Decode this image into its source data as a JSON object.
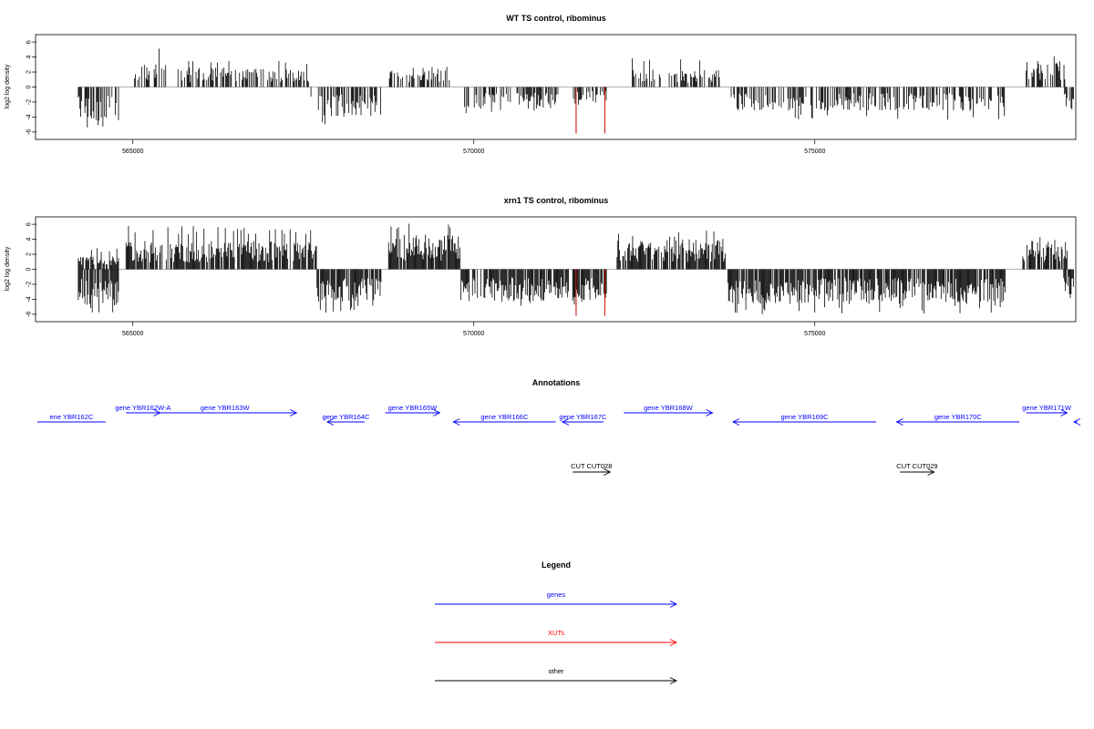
{
  "chart_data": [
    {
      "type": "bar",
      "title": "WT TS control, ribominus",
      "ylabel": "log2 log density",
      "ylim": [
        -6.5,
        6.5
      ],
      "yticks": [
        -6,
        -4,
        -2,
        0,
        2,
        4,
        6
      ],
      "xlim": [
        563600,
        578800
      ],
      "xticks": [
        565000,
        570000,
        575000
      ],
      "xtick_labels": [
        "565000",
        "570000",
        "575000"
      ],
      "colors": {
        "signal": "#000000",
        "highlight": "#cc0000",
        "baseline": "#999999"
      },
      "segments": [
        {
          "start": 564200,
          "end": 564800,
          "sign": -1,
          "max": 6.2,
          "mean": 3.2
        },
        {
          "start": 565000,
          "end": 565500,
          "sign": 1,
          "max": 5.2,
          "mean": 2.2
        },
        {
          "start": 565650,
          "end": 567600,
          "sign": 1,
          "max": 3.6,
          "mean": 1.8
        },
        {
          "start": 567600,
          "end": 568650,
          "sign": -1,
          "max": 5.0,
          "mean": 2.8
        },
        {
          "start": 568750,
          "end": 569650,
          "sign": 1,
          "max": 3.0,
          "mean": 1.8
        },
        {
          "start": 569850,
          "end": 571300,
          "sign": -1,
          "max": 3.6,
          "mean": 2.0
        },
        {
          "start": 571400,
          "end": 571950,
          "sign": -1,
          "max": 2.5,
          "mean": 1.5
        },
        {
          "start": 572300,
          "end": 573600,
          "sign": 1,
          "max": 3.9,
          "mean": 1.6
        },
        {
          "start": 573750,
          "end": 577800,
          "sign": -1,
          "max": 4.6,
          "mean": 2.2
        },
        {
          "start": 578100,
          "end": 578700,
          "sign": 1,
          "max": 4.8,
          "mean": 2.4
        },
        {
          "start": 578650,
          "end": 578800,
          "sign": -1,
          "max": 3.2,
          "mean": 2.2
        }
      ],
      "highlights": [
        {
          "x": 571500,
          "value": -6.2
        },
        {
          "x": 571920,
          "value": -6.2
        }
      ]
    },
    {
      "type": "bar",
      "title": "xrn1 TS control, ribominus",
      "ylabel": "log2 log density",
      "ylim": [
        -6.5,
        6.5
      ],
      "yticks": [
        -6,
        -4,
        -2,
        0,
        2,
        4,
        6
      ],
      "xlim": [
        563600,
        578800
      ],
      "xticks": [
        565000,
        570000,
        575000
      ],
      "xtick_labels": [
        "565000",
        "570000",
        "575000"
      ],
      "colors": {
        "signal": "#000000",
        "highlight": "#cc0000",
        "baseline": "#999999"
      },
      "segments": [
        {
          "start": 564200,
          "end": 564800,
          "sign": -1,
          "max": 5.8,
          "mean": 3.4
        },
        {
          "start": 564200,
          "end": 564800,
          "sign": 1,
          "max": 2.8,
          "mean": 1.2
        },
        {
          "start": 564900,
          "end": 567700,
          "sign": 1,
          "max": 5.8,
          "mean": 2.6
        },
        {
          "start": 567700,
          "end": 568650,
          "sign": -1,
          "max": 5.8,
          "mean": 3.0
        },
        {
          "start": 568750,
          "end": 569800,
          "sign": 1,
          "max": 6.2,
          "mean": 3.2
        },
        {
          "start": 569800,
          "end": 571400,
          "sign": -1,
          "max": 5.2,
          "mean": 3.0
        },
        {
          "start": 571450,
          "end": 571950,
          "sign": -1,
          "max": 4.8,
          "mean": 3.0
        },
        {
          "start": 572100,
          "end": 573700,
          "sign": 1,
          "max": 5.2,
          "mean": 2.8
        },
        {
          "start": 573700,
          "end": 577800,
          "sign": -1,
          "max": 6.0,
          "mean": 3.2
        },
        {
          "start": 578050,
          "end": 578700,
          "sign": 1,
          "max": 4.6,
          "mean": 2.6
        },
        {
          "start": 578650,
          "end": 578800,
          "sign": -1,
          "max": 4.2,
          "mean": 2.4
        }
      ],
      "highlights": [
        {
          "x": 571500,
          "value": -6.2
        },
        {
          "x": 571920,
          "value": -6.2
        }
      ]
    }
  ],
  "annotations": {
    "title": "Annotations",
    "genes": [
      {
        "label": "ene YBR162C",
        "start": 563600,
        "end": 564600,
        "strand": "-",
        "row": 1,
        "arrow": false
      },
      {
        "label": "gene YBR162W-A",
        "start": 564900,
        "end": 565400,
        "strand": "+",
        "row": 0,
        "arrow": true
      },
      {
        "label": "gene YBR163W",
        "start": 565300,
        "end": 567400,
        "strand": "+",
        "row": 0,
        "arrow": true
      },
      {
        "label": "gene YBR164C",
        "start": 567850,
        "end": 568400,
        "strand": "-",
        "row": 1,
        "arrow": true
      },
      {
        "label": "gene YBR165W",
        "start": 568700,
        "end": 569500,
        "strand": "+",
        "row": 0,
        "arrow": true
      },
      {
        "label": "gene YBR166C",
        "start": 569700,
        "end": 571200,
        "strand": "-",
        "row": 1,
        "arrow": true
      },
      {
        "label": "gene YBR167C",
        "start": 571300,
        "end": 571900,
        "strand": "-",
        "row": 1,
        "arrow": true
      },
      {
        "label": "gene YBR168W",
        "start": 572200,
        "end": 573500,
        "strand": "+",
        "row": 0,
        "arrow": true
      },
      {
        "label": "gene YBR169C",
        "start": 573800,
        "end": 575900,
        "strand": "-",
        "row": 1,
        "arrow": true
      },
      {
        "label": "gene YBR170C",
        "start": 576200,
        "end": 578000,
        "strand": "-",
        "row": 1,
        "arrow": true
      },
      {
        "label": "gene YBR171W",
        "start": 578100,
        "end": 578700,
        "strand": "+",
        "row": 0,
        "arrow": true
      },
      {
        "label": "",
        "start": 578800,
        "end": 579500,
        "strand": "-",
        "row": 1,
        "arrow": true
      }
    ],
    "other": [
      {
        "label": "CUT CUT028",
        "start": 571450,
        "end": 572000,
        "strand": "+"
      },
      {
        "label": "CUT CUT029",
        "start": 576250,
        "end": 576750,
        "strand": "+"
      }
    ],
    "colors": {
      "genes": "#0000ff",
      "other": "#000000"
    }
  },
  "legend": {
    "title": "Legend",
    "items": [
      {
        "label": "genes",
        "color": "#0000ff"
      },
      {
        "label": "XUTs",
        "color": "#ff0000"
      },
      {
        "label": "other",
        "color": "#000000"
      }
    ]
  }
}
